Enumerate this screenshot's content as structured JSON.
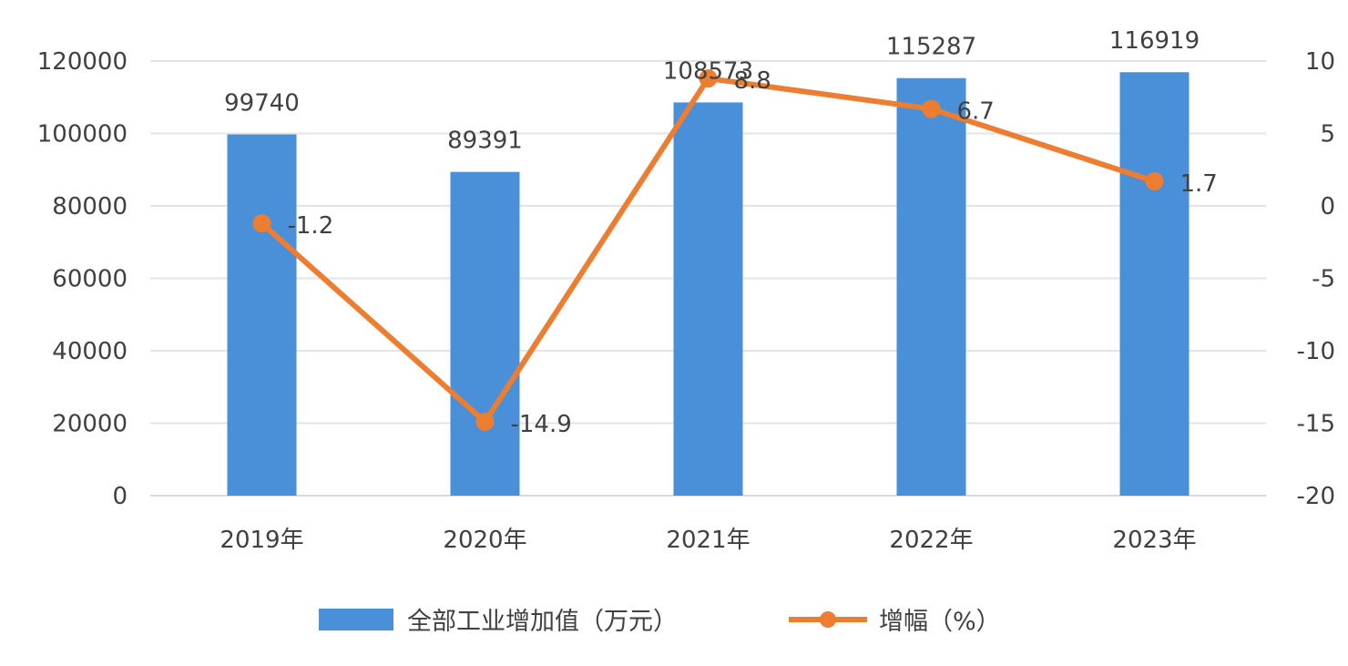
{
  "chart_data": {
    "type": "bar",
    "title": "",
    "categories": [
      "2019年",
      "2020年",
      "2021年",
      "2022年",
      "2023年"
    ],
    "series": [
      {
        "name": "全部工业增加值（万元）",
        "type": "bar",
        "axis": "left",
        "values": [
          99740,
          89391,
          108573,
          115287,
          116919
        ],
        "labels": [
          "99740",
          "89391",
          "108573",
          "115287",
          "116919"
        ],
        "color": "#4A90D9"
      },
      {
        "name": "增幅（%）",
        "type": "line",
        "axis": "right",
        "values": [
          -1.2,
          -14.9,
          8.8,
          6.7,
          1.7
        ],
        "labels": [
          "-1.2",
          "-14.9",
          "8.8",
          "6.7",
          "1.7"
        ],
        "color": "#ED7D31"
      }
    ],
    "y_left": {
      "min": 0,
      "max": 120000,
      "ticks": [
        "0",
        "20000",
        "40000",
        "60000",
        "80000",
        "100000",
        "120000"
      ]
    },
    "y_right": {
      "min": -20,
      "max": 10,
      "ticks": [
        "-20",
        "-15",
        "-10",
        "-5",
        "0",
        "5",
        "10"
      ]
    },
    "grid": true,
    "legend": "bottom"
  }
}
